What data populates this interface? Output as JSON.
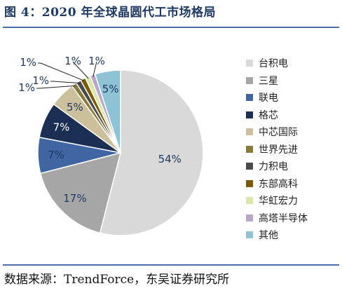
{
  "header": {
    "title": "图 4：2020 年全球晶圆代工市场格局"
  },
  "footer": {
    "source": "数据来源：TrendForce，东吴证券研究所"
  },
  "chart_data": {
    "type": "pie",
    "title": "",
    "legend_position": "right",
    "slices": [
      {
        "name": "台积电",
        "value": 54,
        "label": "54%",
        "color": "#d9d9d9"
      },
      {
        "name": "三星",
        "value": 17,
        "label": "17%",
        "color": "#a6a6a6"
      },
      {
        "name": "联电",
        "value": 7,
        "label": "7%",
        "color": "#3f66a3"
      },
      {
        "name": "格芯",
        "value": 7,
        "label": "7%",
        "color": "#1b2f55"
      },
      {
        "name": "中芯国际",
        "value": 5,
        "label": "5%",
        "color": "#cbc09b"
      },
      {
        "name": "世界先进",
        "value": 1,
        "label": "1%",
        "color": "#8a7a3a"
      },
      {
        "name": "力积电",
        "value": 1,
        "label": "1%",
        "color": "#4a4a4a"
      },
      {
        "name": "东部高科",
        "value": 1,
        "label": "1%",
        "color": "#7a5a00"
      },
      {
        "name": "华虹宏力",
        "value": 1,
        "label": "1%",
        "color": "#d9e6a6"
      },
      {
        "name": "高塔半导体",
        "value": 1,
        "label": "1%",
        "color": "#b8a6cc"
      },
      {
        "name": "其他",
        "value": 5,
        "label": "5%",
        "color": "#8ec3d6"
      }
    ]
  }
}
